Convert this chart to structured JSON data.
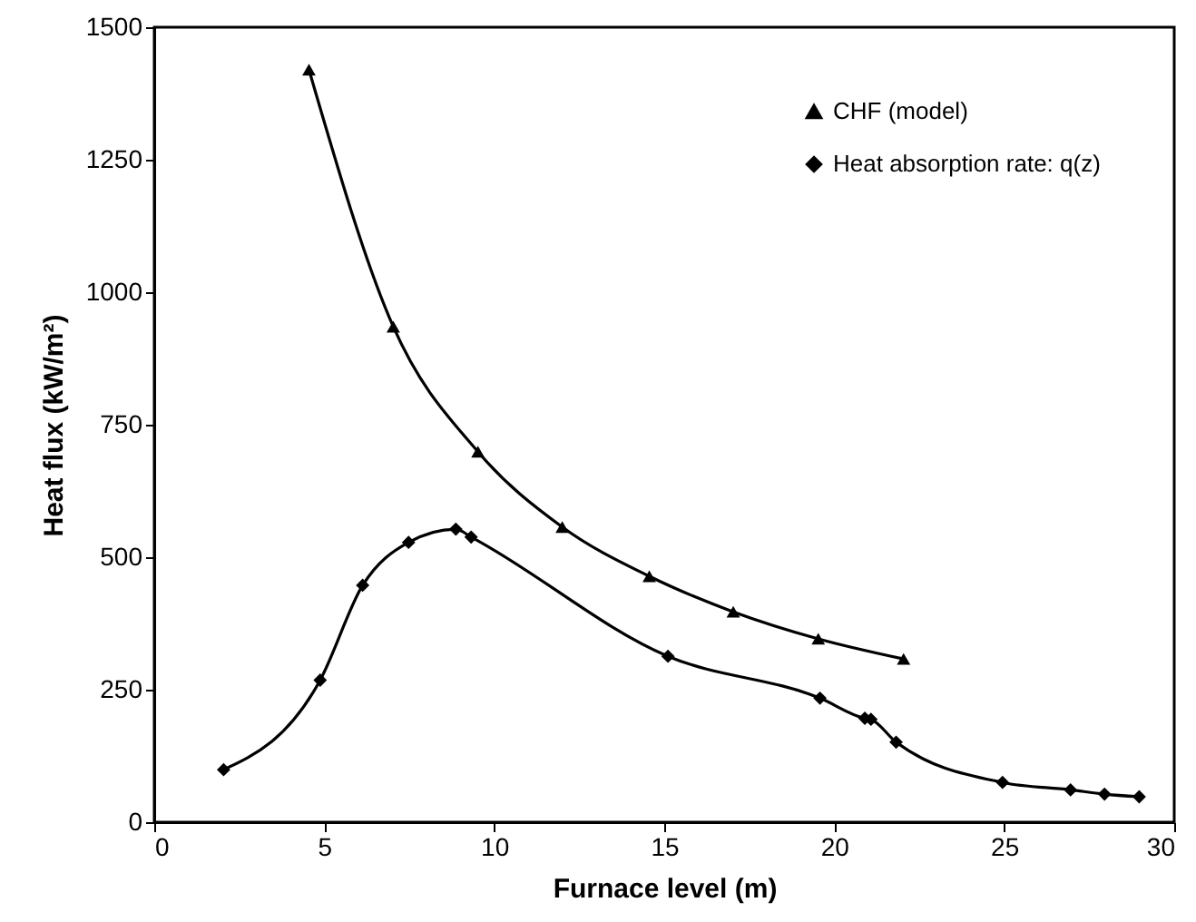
{
  "chart_data": {
    "type": "line",
    "xlabel": "Furnace level (m)",
    "ylabel": "Heat flux (kW/m²)",
    "xlim": [
      0,
      30
    ],
    "xticks": [
      0,
      5,
      10,
      15,
      20,
      25,
      30
    ],
    "ylim": [
      0,
      1500
    ],
    "yticks": [
      0,
      250,
      500,
      750,
      1000,
      1250,
      1500
    ],
    "grid": false,
    "legend": "top right",
    "line_style": "solid",
    "series": [
      {
        "name": "CHF (model)",
        "color": "#000000",
        "marker": "triangle",
        "x": [
          4.55,
          7.03,
          9.52,
          12.0,
          14.56,
          17.03,
          19.53,
          22.04
        ],
        "values": [
          1420,
          935,
          699,
          557,
          464,
          397,
          346,
          308
        ]
      },
      {
        "name": "Heat absorption rate: q(z)",
        "color": "#000000",
        "marker": "diamond",
        "x": [
          2.04,
          4.88,
          6.13,
          7.48,
          8.87,
          9.32,
          15.11,
          19.58,
          20.9,
          21.08,
          21.82,
          24.95,
          26.95,
          27.95,
          28.97
        ],
        "values": [
          99,
          268,
          447,
          528,
          553,
          538,
          313,
          234,
          196,
          194,
          151,
          75,
          61,
          53,
          48
        ]
      }
    ]
  }
}
